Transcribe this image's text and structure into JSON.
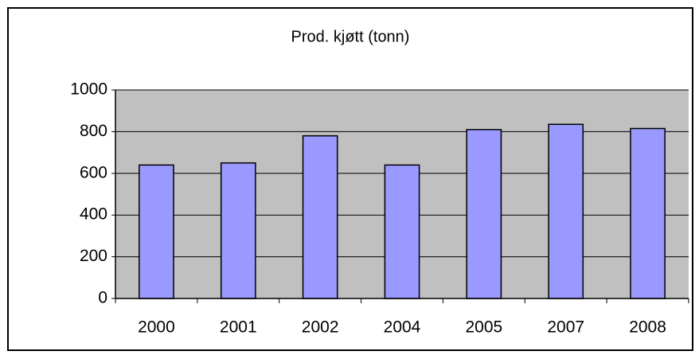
{
  "chart_data": {
    "type": "bar",
    "title": "Prod. kjøtt (tonn)",
    "categories": [
      "2000",
      "2001",
      "2002",
      "2004",
      "2005",
      "2007",
      "2008"
    ],
    "values": [
      640,
      650,
      780,
      640,
      810,
      835,
      815
    ],
    "color": "#9999ff",
    "plot_background": "#c0c0c0",
    "ylim": [
      0,
      1000
    ],
    "yticks": [
      0,
      200,
      400,
      600,
      800,
      1000
    ],
    "grid": true
  }
}
